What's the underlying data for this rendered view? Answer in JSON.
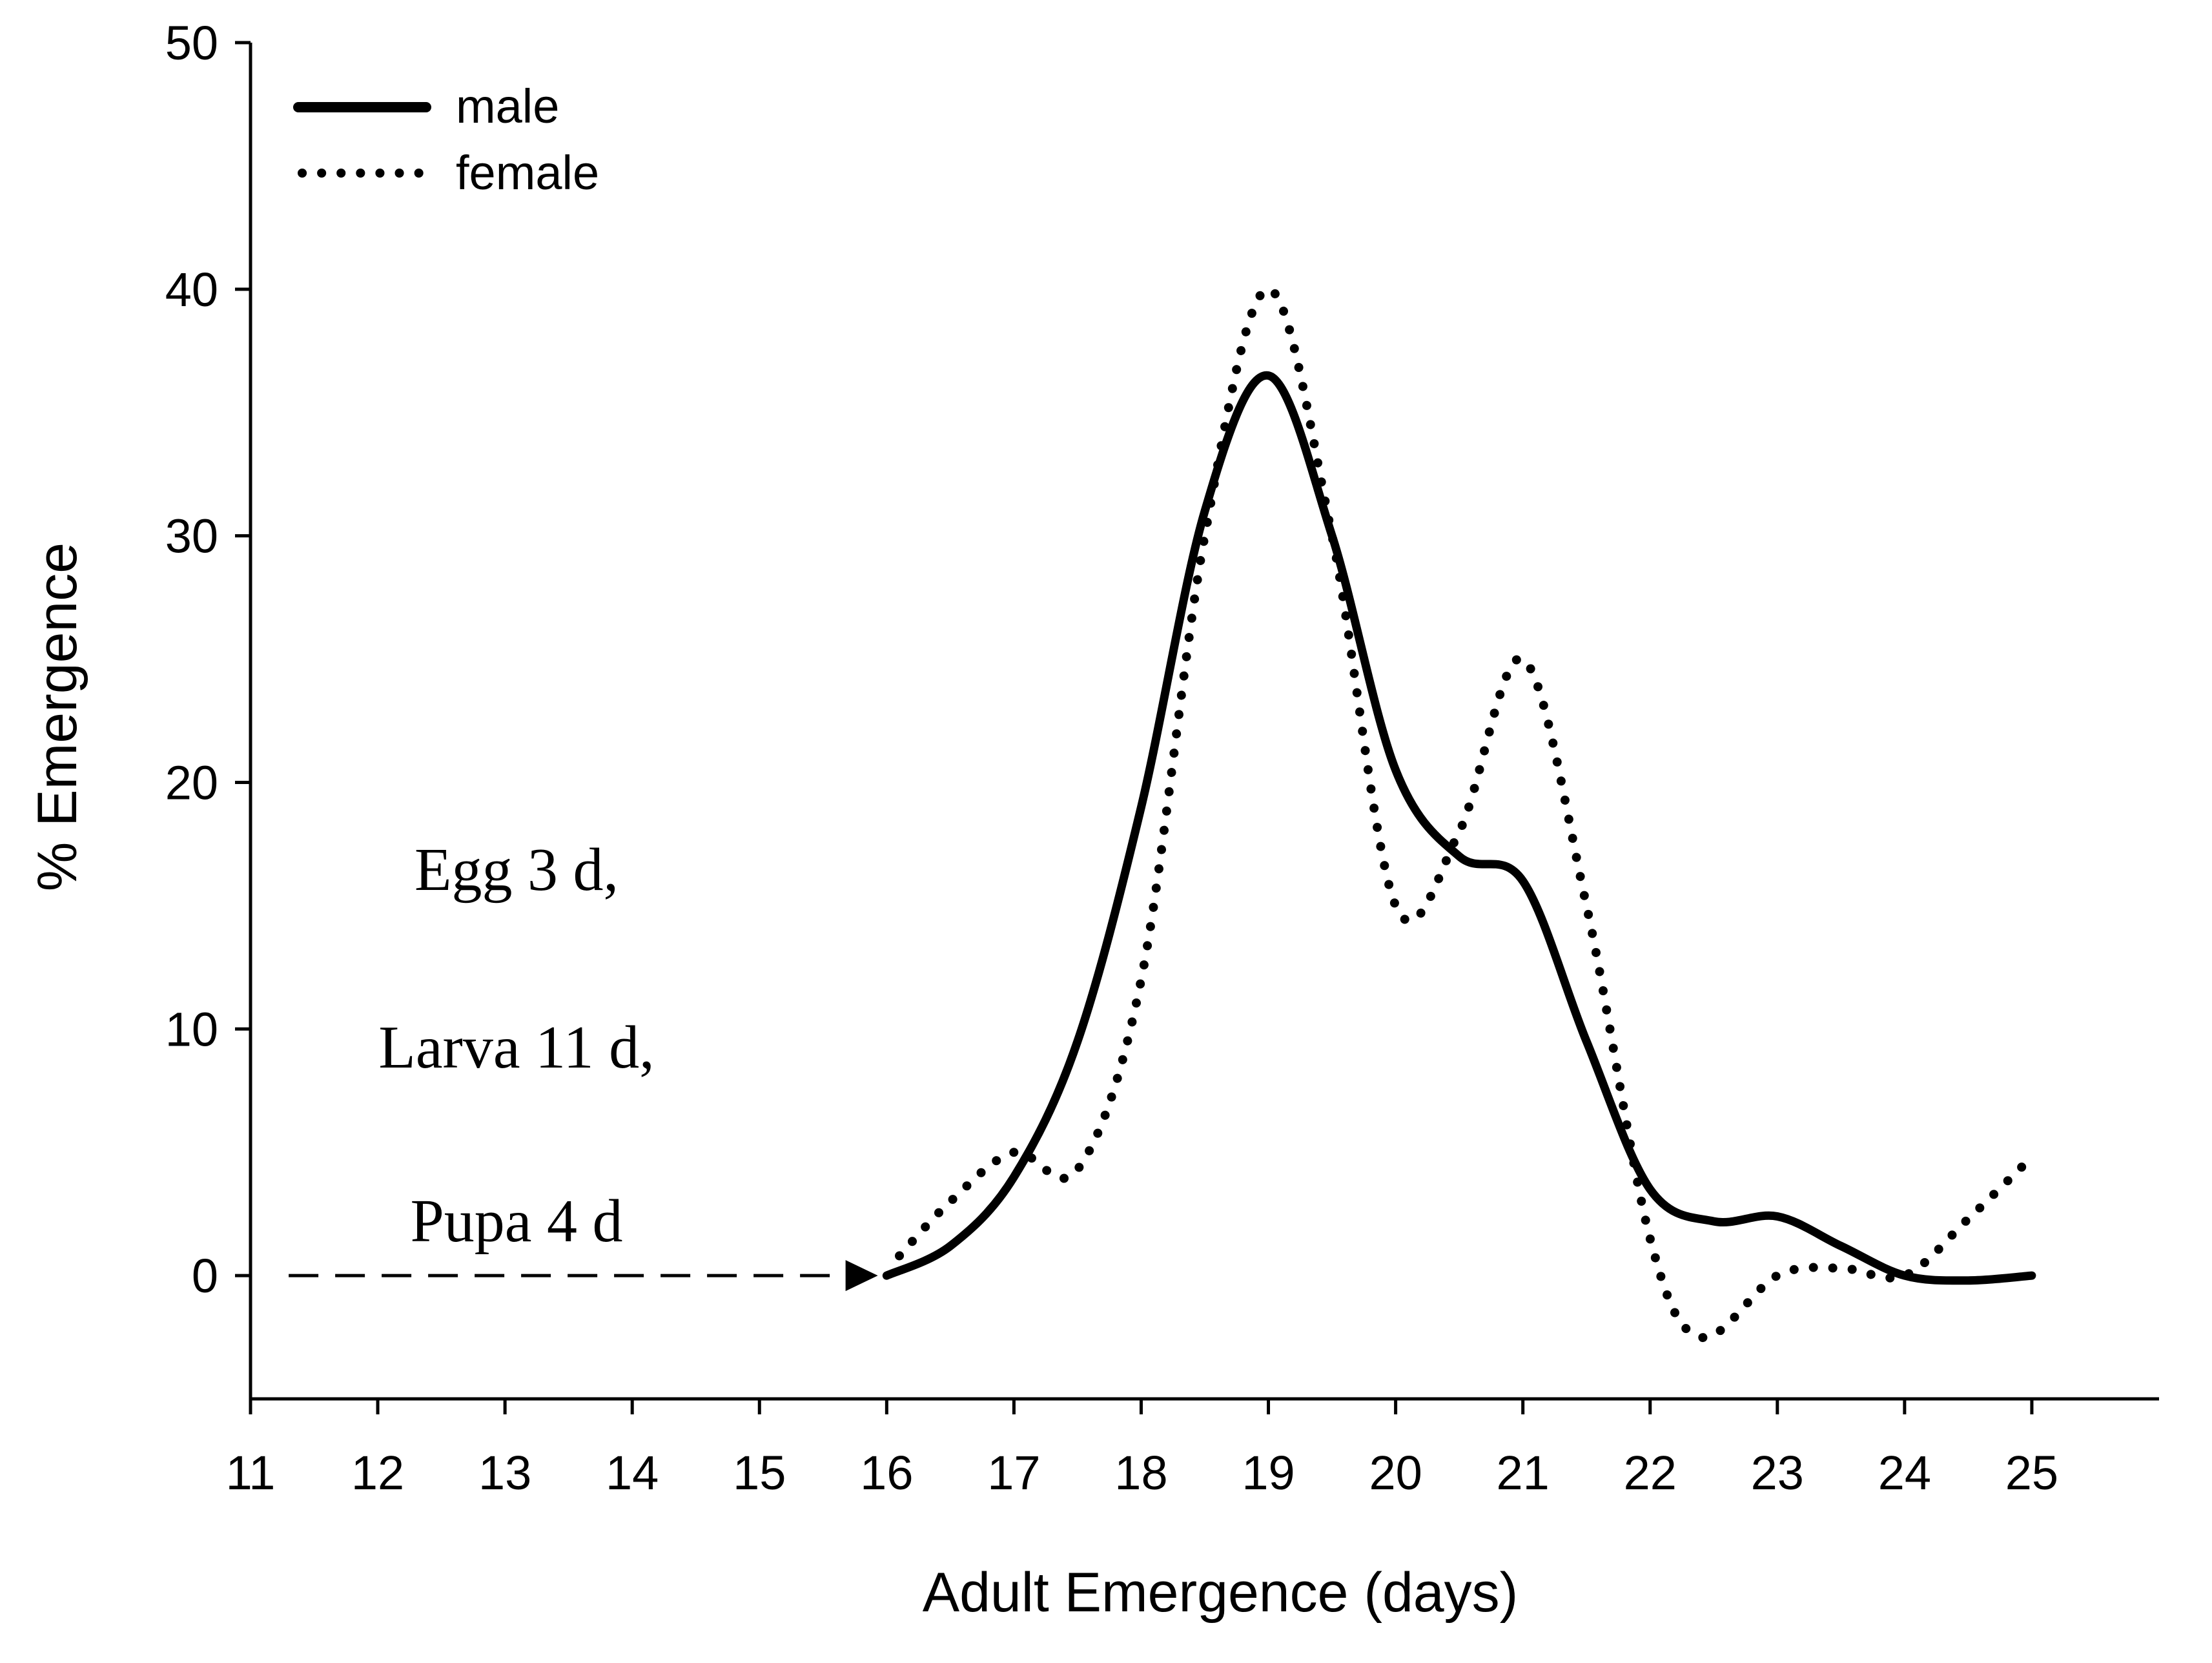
{
  "chart_data": {
    "type": "line",
    "title": "",
    "xlabel": "Adult Emergence (days)",
    "ylabel": "% Emergence",
    "xlim": [
      11,
      26
    ],
    "ylim": [
      -5,
      50
    ],
    "x_ticks": [
      11,
      12,
      13,
      14,
      15,
      16,
      17,
      18,
      19,
      20,
      21,
      22,
      23,
      24,
      25
    ],
    "y_ticks": [
      0,
      10,
      20,
      30,
      40,
      50
    ],
    "grid": false,
    "legend_position": "top-left",
    "series": [
      {
        "name": "male",
        "style": "solid",
        "color": "#000000",
        "points": [
          [
            16,
            0
          ],
          [
            16.5,
            1.2
          ],
          [
            17,
            4
          ],
          [
            17.5,
            9.5
          ],
          [
            18,
            19
          ],
          [
            18.5,
            31
          ],
          [
            19,
            36.5
          ],
          [
            19.5,
            30
          ],
          [
            20,
            20.5
          ],
          [
            20.5,
            17
          ],
          [
            21,
            16
          ],
          [
            21.5,
            9.5
          ],
          [
            22,
            3.5
          ],
          [
            22.5,
            2.2
          ],
          [
            23,
            2.4
          ],
          [
            23.5,
            1.2
          ],
          [
            24,
            0
          ],
          [
            24.5,
            -0.2
          ],
          [
            25,
            0
          ]
        ]
      },
      {
        "name": "female",
        "style": "dotted",
        "color": "#000000",
        "points": [
          [
            16.1,
            0.8
          ],
          [
            16.5,
            3
          ],
          [
            17,
            5
          ],
          [
            17.5,
            4.3
          ],
          [
            18,
            12
          ],
          [
            18.5,
            30
          ],
          [
            19,
            40
          ],
          [
            19.5,
            30
          ],
          [
            20,
            15
          ],
          [
            20.5,
            18
          ],
          [
            21,
            25
          ],
          [
            21.5,
            15
          ],
          [
            22,
            1.5
          ],
          [
            22.4,
            -2.5
          ],
          [
            23,
            0
          ],
          [
            23.5,
            0.3
          ],
          [
            24,
            0
          ],
          [
            24.5,
            2.3
          ],
          [
            25,
            4.8
          ]
        ]
      }
    ],
    "reference_line": {
      "style": "dashed",
      "points": [
        [
          11.3,
          0
        ],
        [
          15.9,
          0
        ]
      ],
      "arrow": "end"
    },
    "annotations": [
      "Egg 3 d,",
      "Larva 11 d,",
      "Pupa 4 d"
    ]
  }
}
